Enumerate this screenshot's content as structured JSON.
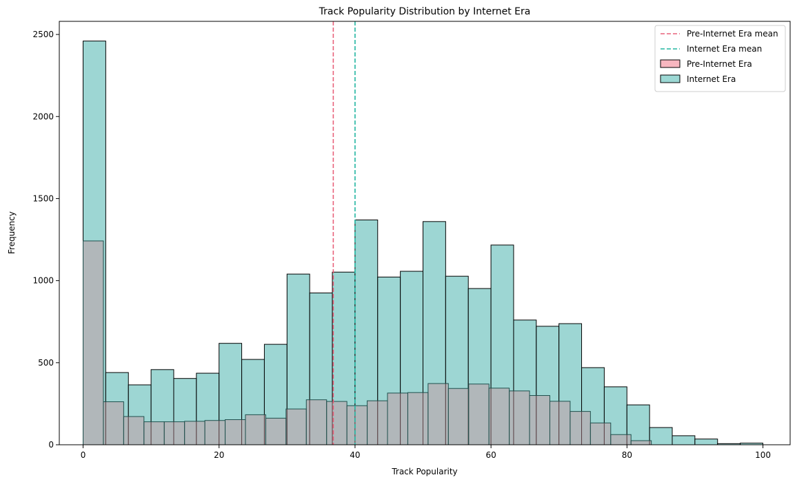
{
  "chart_data": {
    "type": "bar",
    "title": "Track Popularity Distribution by Internet Era",
    "xlabel": "Track Popularity",
    "ylabel": "Frequency",
    "xlim": [
      -3.5,
      104
    ],
    "ylim": [
      0,
      2580
    ],
    "xticks": [
      0,
      20,
      40,
      60,
      80,
      100
    ],
    "yticks": [
      0,
      500,
      1000,
      1500,
      2000,
      2500
    ],
    "legend_position": "top-right",
    "grid": false,
    "series": [
      {
        "name": "Internet Era",
        "color": "#7cc8c4",
        "bin_start": 0,
        "bin_width": 3.333,
        "values": [
          2460,
          440,
          365,
          458,
          404,
          436,
          618,
          520,
          612,
          1040,
          925,
          1052,
          1370,
          1022,
          1057,
          1360,
          1027,
          952,
          1217,
          760,
          722,
          738,
          470,
          353,
          243,
          105,
          55,
          35,
          7,
          10
        ]
      },
      {
        "name": "Pre-Internet Era",
        "color": "#f48a9a",
        "bin_start": 0,
        "bin_width": 2.985,
        "values": [
          1242,
          262,
          172,
          140,
          140,
          143,
          148,
          153,
          183,
          162,
          218,
          274,
          264,
          238,
          268,
          315,
          318,
          373,
          343,
          370,
          345,
          328,
          300,
          265,
          203,
          133,
          62,
          25,
          0,
          0,
          0,
          0,
          0,
          0
        ]
      }
    ],
    "mean_lines": [
      {
        "name": "Pre-Internet Era mean",
        "x": 36.8,
        "color": "#e8617a"
      },
      {
        "name": "Internet Era mean",
        "x": 40.0,
        "color": "#21b5a1"
      }
    ],
    "legend": [
      {
        "label": "Pre-Internet Era mean",
        "kind": "dashed",
        "color": "#e8617a"
      },
      {
        "label": "Internet Era mean",
        "kind": "dashed",
        "color": "#21b5a1"
      },
      {
        "label": "Pre-Internet Era",
        "kind": "patch",
        "color": "#f7b6bf"
      },
      {
        "label": "Internet Era",
        "kind": "patch",
        "color": "#9cd8d4"
      }
    ]
  }
}
